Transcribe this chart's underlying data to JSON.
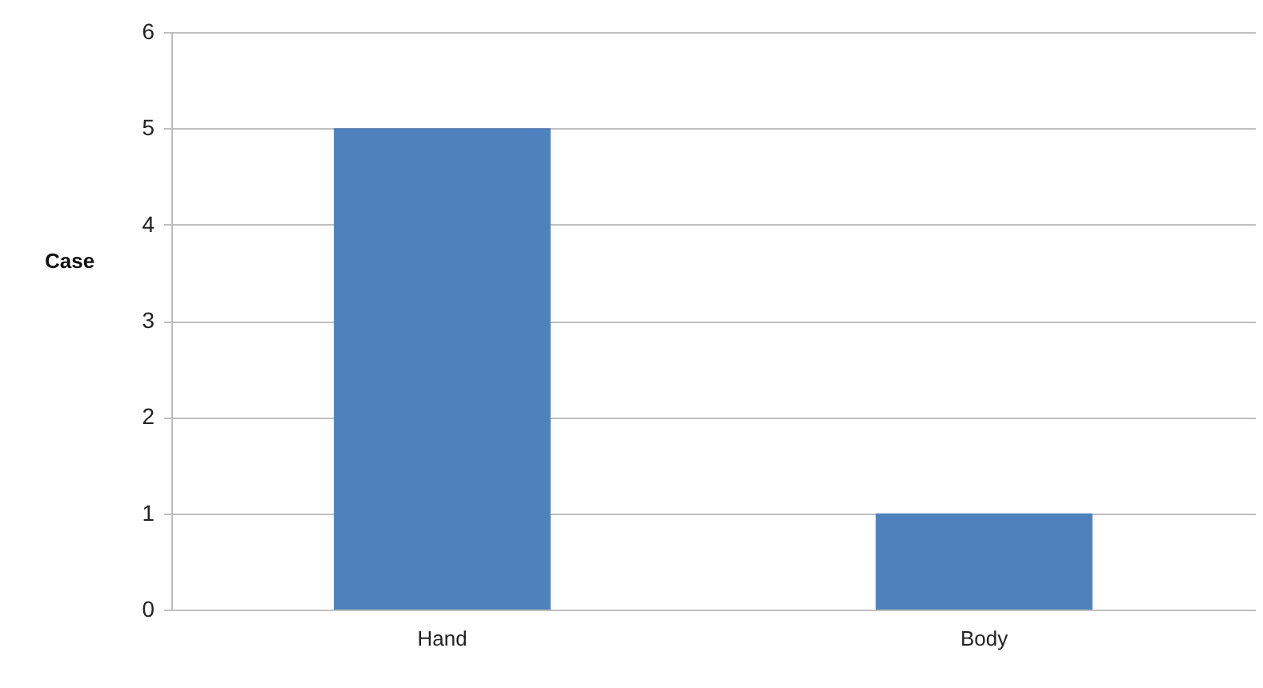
{
  "chart_data": {
    "type": "bar",
    "ylabel": "Case",
    "categories": [
      "Hand",
      "Body"
    ],
    "values": [
      5,
      1
    ],
    "color": "#4f81bd",
    "ylim": [
      0,
      6
    ],
    "yticks": [
      0,
      1,
      2,
      3,
      4,
      5,
      6
    ],
    "grid": "y"
  }
}
